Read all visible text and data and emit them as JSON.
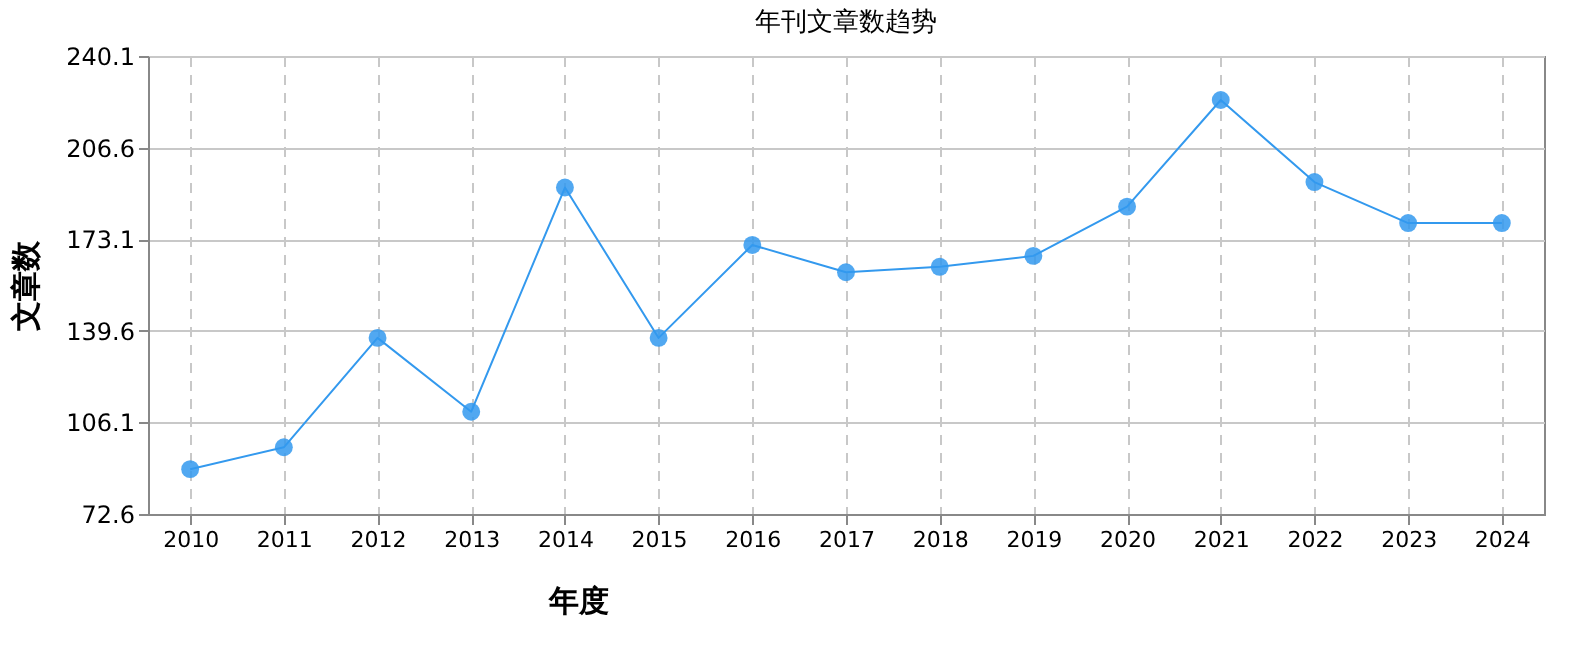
{
  "chart_data": {
    "type": "line",
    "title": "年刊文章数趋势",
    "xlabel": "年度",
    "ylabel": "文章数",
    "categories": [
      "2010",
      "2011",
      "2012",
      "2013",
      "2014",
      "2015",
      "2016",
      "2017",
      "2018",
      "2019",
      "2020",
      "2021",
      "2022",
      "2023",
      "2024"
    ],
    "series": [
      {
        "color": "#3399ee",
        "values": [
          89,
          97,
          137,
          110,
          192,
          137,
          171,
          161,
          163,
          167,
          185,
          224,
          194,
          179,
          179
        ]
      }
    ],
    "ylim": [
      72.6,
      240.1
    ],
    "yticks": [
      72.6,
      106.1,
      139.6,
      173.1,
      206.6,
      240.1
    ],
    "grid": true,
    "marker": "circle",
    "line_style": "solid"
  }
}
